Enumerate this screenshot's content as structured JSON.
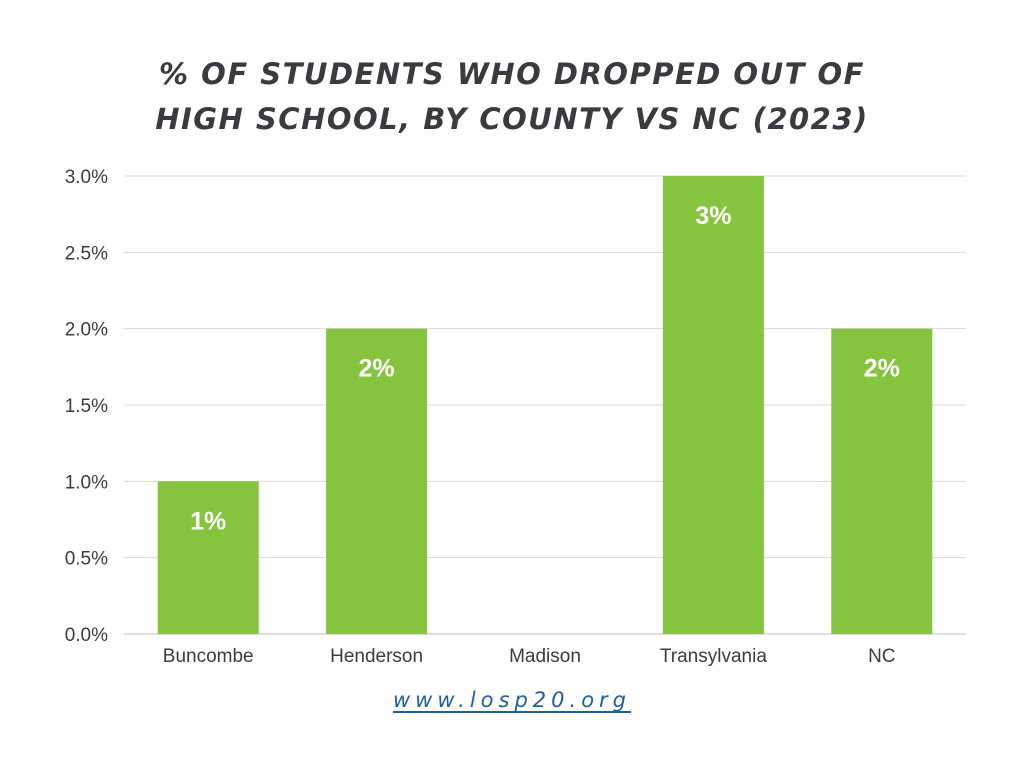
{
  "chart_data": {
    "type": "bar",
    "title_lines": [
      "% OF STUDENTS WHO DROPPED OUT OF",
      "HIGH SCHOOL, BY COUNTY VS NC (2023)"
    ],
    "categories": [
      "Buncombe",
      "Henderson",
      "Madison",
      "Transylvania",
      "NC"
    ],
    "values": [
      1,
      2,
      null,
      3,
      2
    ],
    "data_labels": [
      "1%",
      "2%",
      "",
      "3%",
      "2%"
    ],
    "ylim": [
      0,
      3
    ],
    "y_ticks": [
      0,
      0.5,
      1,
      1.5,
      2,
      2.5,
      3
    ],
    "y_tick_labels": [
      "0.0%",
      "0.5%",
      "1.0%",
      "1.5%",
      "2.0%",
      "2.5%",
      "3.0%"
    ],
    "grid": true,
    "bar_color": "#86c440",
    "grid_color": "#d9d9d9",
    "xlabel": "",
    "ylabel": ""
  },
  "footer": {
    "link_text": "www.losp20.org"
  }
}
